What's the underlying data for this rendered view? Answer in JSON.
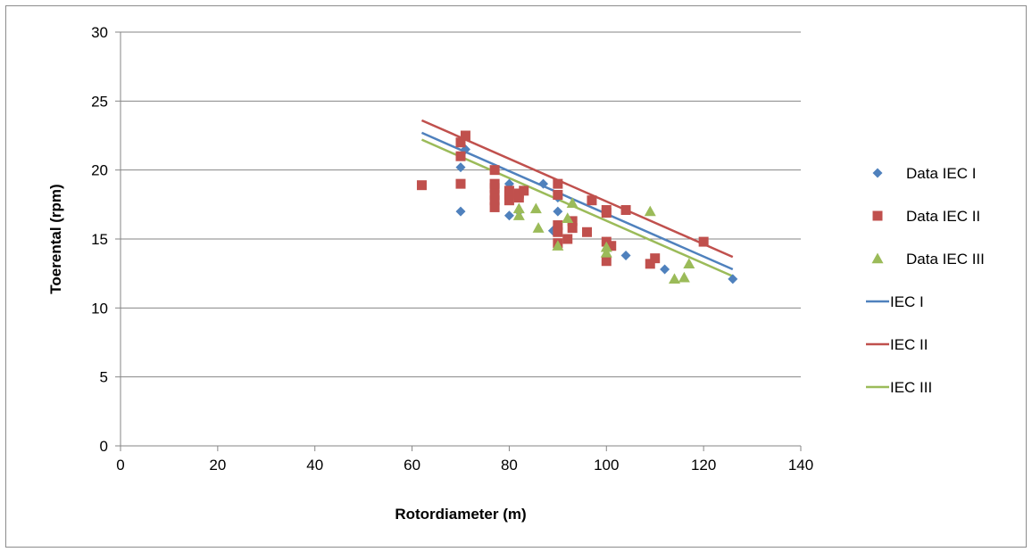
{
  "chart_data": {
    "type": "scatter",
    "title": "",
    "xlabel": "Rotordiameter (m)",
    "ylabel": "Toerental (rpm)",
    "xlim": [
      0,
      140
    ],
    "ylim": [
      0,
      30
    ],
    "x_ticks": [
      0,
      20,
      40,
      60,
      80,
      100,
      120,
      140
    ],
    "y_ticks": [
      0,
      5,
      10,
      15,
      20,
      25,
      30
    ],
    "grid": "horizontal",
    "legend_position": "right",
    "series": [
      {
        "name": "Data IEC I",
        "kind": "scatter",
        "marker": "diamond",
        "color": "#4F81BD",
        "points": [
          [
            70,
            17.0
          ],
          [
            70,
            20.2
          ],
          [
            71,
            21.5
          ],
          [
            80,
            16.7
          ],
          [
            80,
            19.0
          ],
          [
            82,
            17.0
          ],
          [
            87,
            19.0
          ],
          [
            89,
            15.6
          ],
          [
            90,
            17.0
          ],
          [
            90,
            18.0
          ],
          [
            100,
            14.8
          ],
          [
            104,
            13.8
          ],
          [
            112,
            12.8
          ],
          [
            126,
            12.1
          ]
        ]
      },
      {
        "name": "Data IEC II",
        "kind": "scatter",
        "marker": "square",
        "color": "#C0504D",
        "points": [
          [
            62,
            18.9
          ],
          [
            70,
            19.0
          ],
          [
            70,
            21.0
          ],
          [
            70,
            22.0
          ],
          [
            71,
            22.5
          ],
          [
            77,
            17.3
          ],
          [
            77,
            17.8
          ],
          [
            77,
            18.2
          ],
          [
            77,
            18.7
          ],
          [
            77,
            19.0
          ],
          [
            77,
            20.0
          ],
          [
            80,
            17.8
          ],
          [
            80,
            18.2
          ],
          [
            80,
            18.5
          ],
          [
            82,
            18.0
          ],
          [
            82,
            18.3
          ],
          [
            83,
            18.5
          ],
          [
            90,
            14.7
          ],
          [
            90,
            15.5
          ],
          [
            90,
            16.0
          ],
          [
            90,
            18.2
          ],
          [
            90,
            19.0
          ],
          [
            92,
            15.0
          ],
          [
            93,
            15.8
          ],
          [
            93,
            16.3
          ],
          [
            96,
            15.5
          ],
          [
            97,
            17.8
          ],
          [
            100,
            13.4
          ],
          [
            100,
            14.8
          ],
          [
            100,
            16.9
          ],
          [
            100,
            17.1
          ],
          [
            101,
            14.5
          ],
          [
            104,
            17.1
          ],
          [
            109,
            13.2
          ],
          [
            110,
            13.6
          ],
          [
            120,
            14.8
          ]
        ]
      },
      {
        "name": "Data IEC III",
        "kind": "scatter",
        "marker": "triangle",
        "color": "#9BBB59",
        "points": [
          [
            82,
            16.7
          ],
          [
            82,
            17.2
          ],
          [
            85.5,
            17.2
          ],
          [
            86,
            15.8
          ],
          [
            90,
            14.5
          ],
          [
            92,
            16.5
          ],
          [
            93,
            17.6
          ],
          [
            100,
            14.0
          ],
          [
            100,
            14.4
          ],
          [
            109,
            17.0
          ],
          [
            114,
            12.1
          ],
          [
            116,
            12.2
          ],
          [
            117,
            13.2
          ]
        ]
      },
      {
        "name": "IEC I",
        "kind": "line",
        "color": "#4F81BD",
        "points": [
          [
            62,
            22.7
          ],
          [
            126,
            12.8
          ]
        ]
      },
      {
        "name": "IEC II",
        "kind": "line",
        "color": "#C0504D",
        "points": [
          [
            62,
            23.6
          ],
          [
            126,
            13.7
          ]
        ]
      },
      {
        "name": "IEC III",
        "kind": "line",
        "color": "#9BBB59",
        "points": [
          [
            62,
            22.2
          ],
          [
            126,
            12.3
          ]
        ]
      }
    ]
  },
  "style": {
    "gridline_color": "#868686",
    "axis_color": "#868686",
    "frame_color": "#8c8c8c"
  }
}
